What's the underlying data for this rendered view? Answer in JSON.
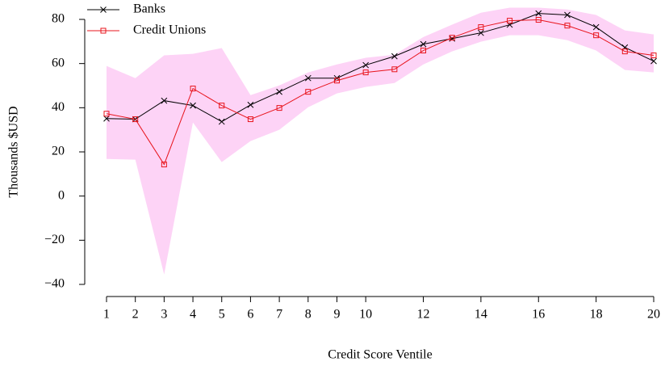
{
  "chart_data": {
    "type": "line",
    "x_label": "Credit Score Ventile",
    "y_label": "Thousands $USD",
    "x": [
      1,
      2,
      3,
      4,
      5,
      6,
      7,
      8,
      9,
      10,
      11,
      12,
      13,
      14,
      15,
      16,
      17,
      18,
      19,
      20
    ],
    "series": [
      {
        "name": "Banks",
        "color": "#000000",
        "marker": "x",
        "values": [
          35.1,
          34.8,
          43.2,
          41,
          33.7,
          41.3,
          47.2,
          53.4,
          53.4,
          59.3,
          63.3,
          68.8,
          71.3,
          73.9,
          77.6,
          82.7,
          82,
          76.5,
          67.3,
          61.1
        ]
      },
      {
        "name": "Credit Unions",
        "color": "#e8141c",
        "marker": "square",
        "values": [
          37.3,
          34.8,
          14.3,
          48.7,
          41,
          34.8,
          39.9,
          47.2,
          52.3,
          56,
          57.4,
          65.9,
          71.7,
          76.5,
          79.4,
          79.8,
          77.2,
          72.8,
          65.5,
          63.7
        ]
      }
    ],
    "band": {
      "color": "#fdd3f6",
      "upper": [
        58.9,
        53.4,
        63.7,
        64.4,
        67,
        45.7,
        50.1,
        56,
        59.6,
        62.6,
        64,
        72,
        77.6,
        83,
        85.3,
        85.3,
        84.5,
        82,
        75,
        73.2
      ],
      "lower": [
        16.8,
        16.5,
        -35.5,
        33.3,
        15.4,
        24.9,
        30,
        40.2,
        46.5,
        49.4,
        51.2,
        59.6,
        65.5,
        69.9,
        72.8,
        72.8,
        70.6,
        65.9,
        57.1,
        56
      ]
    },
    "xlim": [
      1,
      20
    ],
    "xticks": [
      1,
      2,
      3,
      4,
      5,
      6,
      7,
      8,
      9,
      10,
      12,
      14,
      16,
      18,
      20
    ],
    "ylim": [
      -40,
      80
    ],
    "yticks": [
      {
        "value": -40,
        "label": "−40"
      },
      {
        "value": -20,
        "label": "−20"
      },
      0,
      20,
      40,
      60,
      80
    ],
    "legend": "top-left"
  }
}
